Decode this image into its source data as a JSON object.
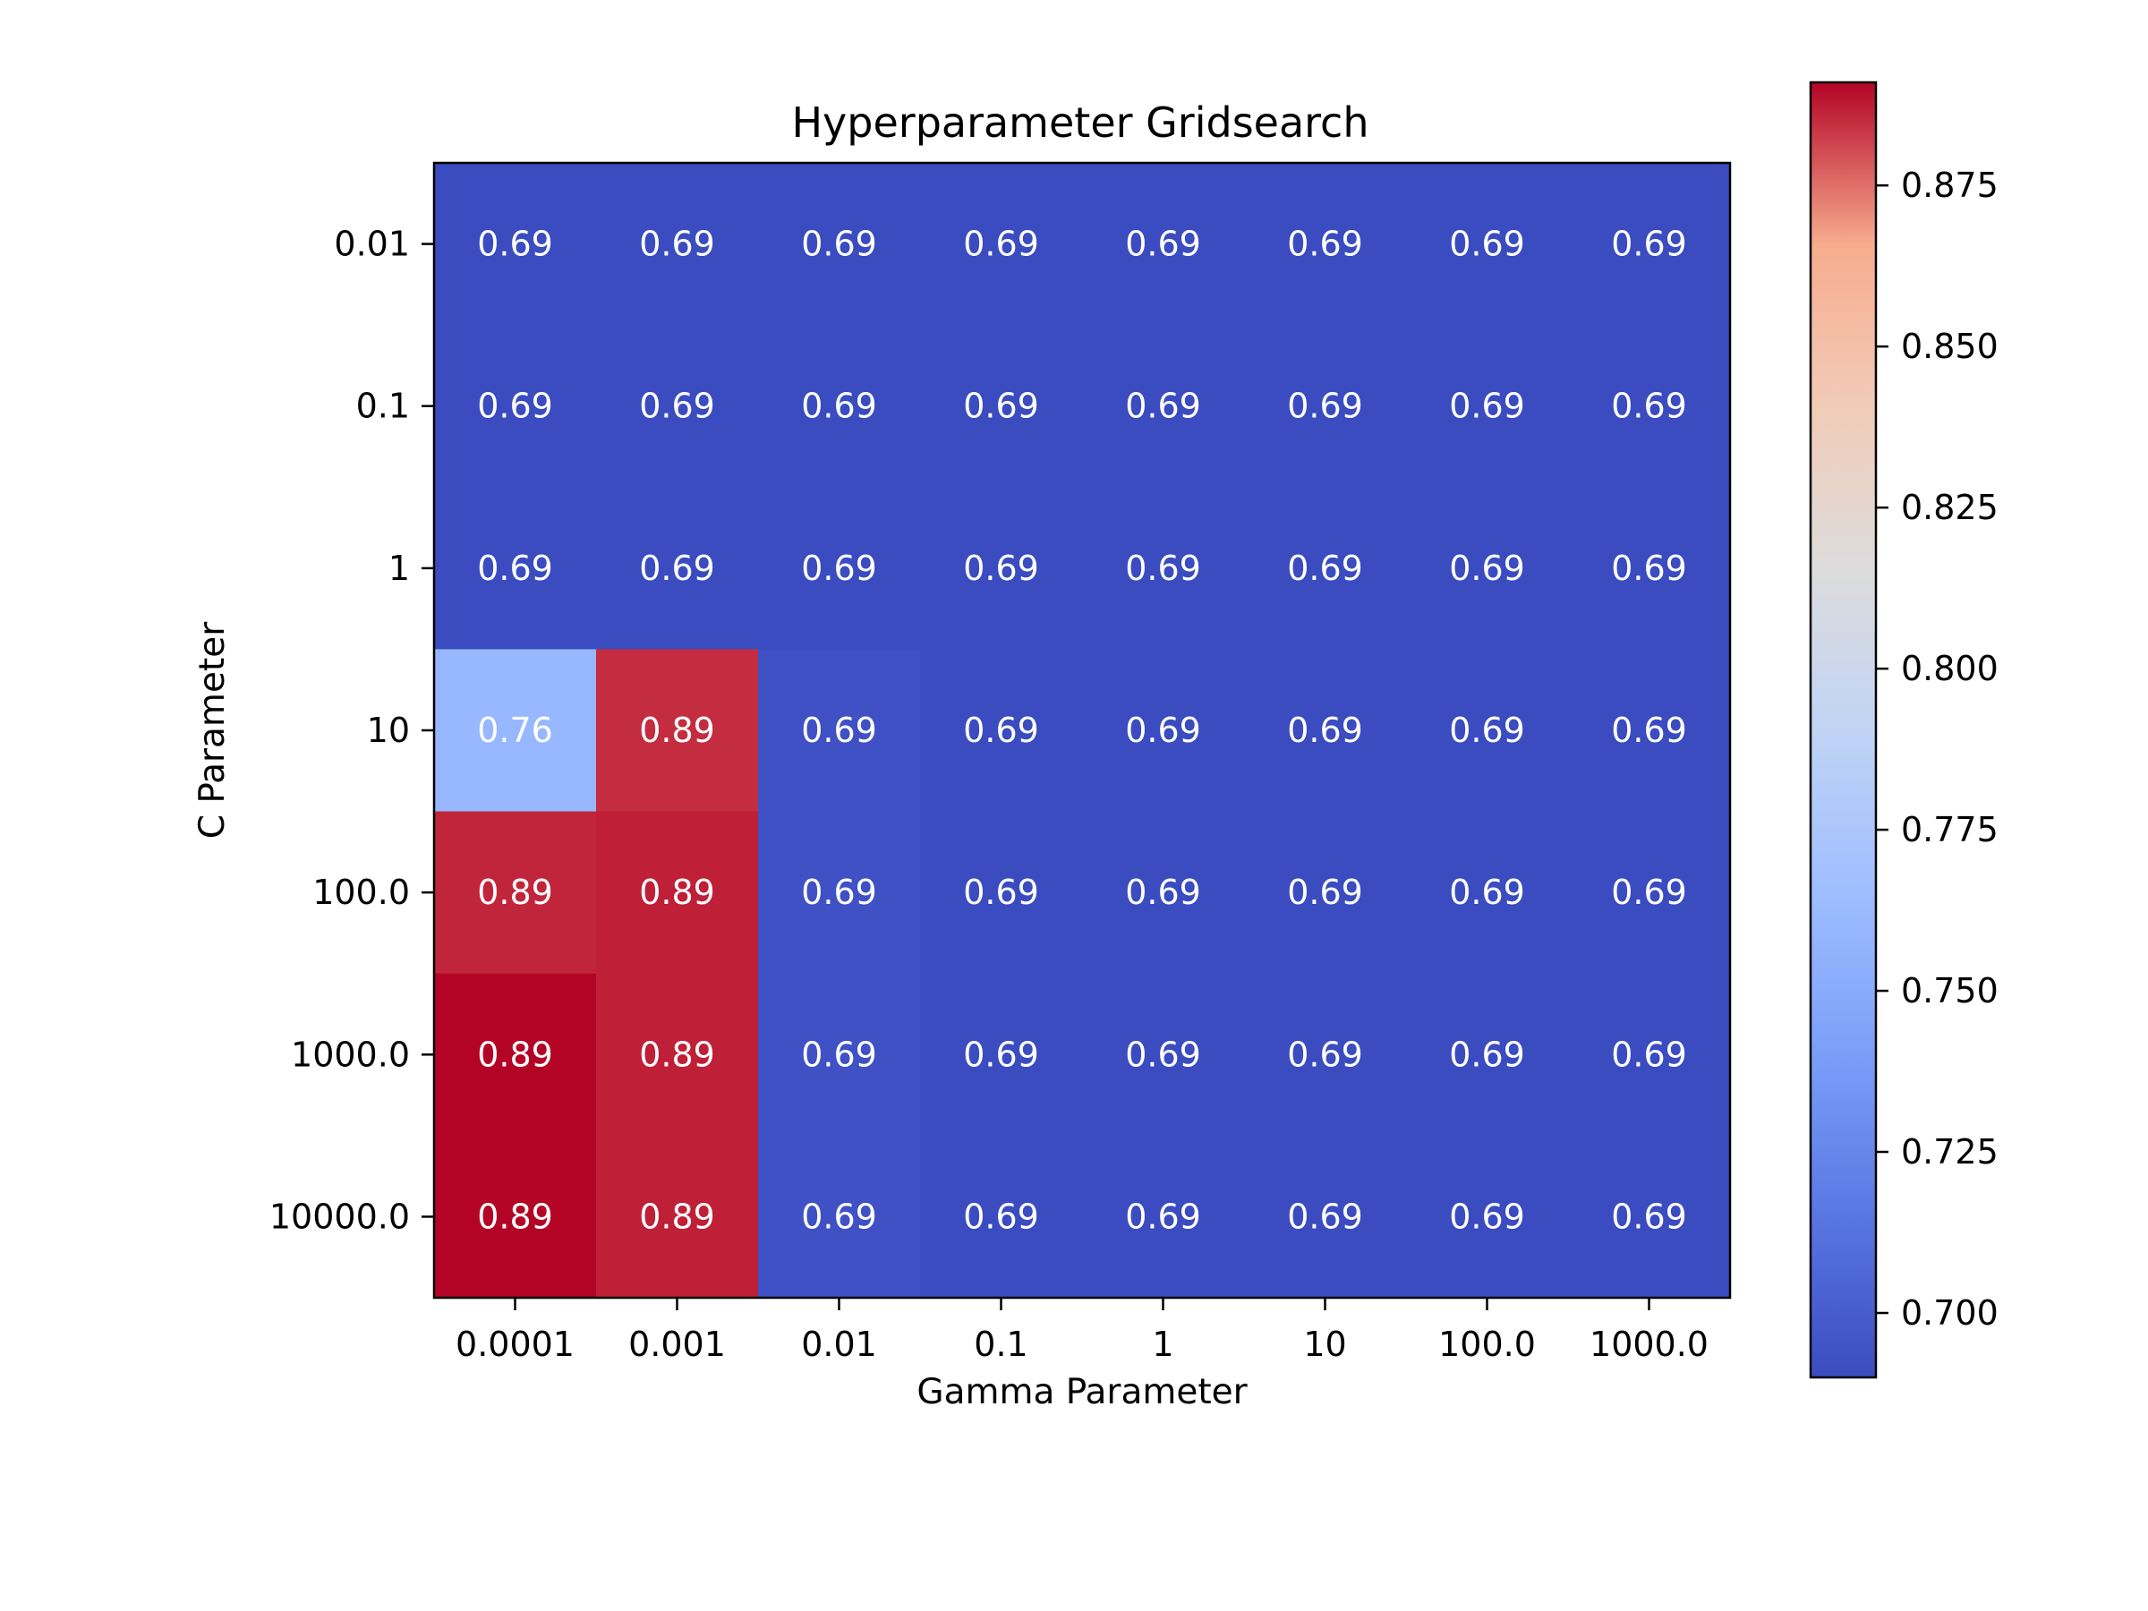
{
  "chart_data": {
    "type": "heatmap",
    "title": "Hyperparameter Gridsearch",
    "xlabel": "Gamma Parameter",
    "ylabel": "C Parameter",
    "x_categories": [
      "0.0001",
      "0.001",
      "0.01",
      "0.1",
      "1",
      "10",
      "100.0",
      "1000.0"
    ],
    "y_categories": [
      "0.01",
      "0.1",
      "1",
      "10",
      "100.0",
      "1000.0",
      "10000.0"
    ],
    "values": [
      [
        0.69,
        0.69,
        0.69,
        0.69,
        0.69,
        0.69,
        0.69,
        0.69
      ],
      [
        0.69,
        0.69,
        0.69,
        0.69,
        0.69,
        0.69,
        0.69,
        0.69
      ],
      [
        0.69,
        0.69,
        0.69,
        0.69,
        0.69,
        0.69,
        0.69,
        0.69
      ],
      [
        0.76,
        0.885,
        0.693,
        0.69,
        0.69,
        0.69,
        0.69,
        0.69
      ],
      [
        0.886,
        0.887,
        0.693,
        0.69,
        0.69,
        0.69,
        0.69,
        0.69
      ],
      [
        0.891,
        0.887,
        0.693,
        0.69,
        0.69,
        0.69,
        0.69,
        0.69
      ],
      [
        0.891,
        0.887,
        0.693,
        0.69,
        0.69,
        0.69,
        0.69,
        0.69
      ]
    ],
    "cell_labels": [
      [
        "0.69",
        "0.69",
        "0.69",
        "0.69",
        "0.69",
        "0.69",
        "0.69",
        "0.69"
      ],
      [
        "0.69",
        "0.69",
        "0.69",
        "0.69",
        "0.69",
        "0.69",
        "0.69",
        "0.69"
      ],
      [
        "0.69",
        "0.69",
        "0.69",
        "0.69",
        "0.69",
        "0.69",
        "0.69",
        "0.69"
      ],
      [
        "0.76",
        "0.89",
        "0.69",
        "0.69",
        "0.69",
        "0.69",
        "0.69",
        "0.69"
      ],
      [
        "0.89",
        "0.89",
        "0.69",
        "0.69",
        "0.69",
        "0.69",
        "0.69",
        "0.69"
      ],
      [
        "0.89",
        "0.89",
        "0.69",
        "0.69",
        "0.69",
        "0.69",
        "0.69",
        "0.69"
      ],
      [
        "0.89",
        "0.89",
        "0.69",
        "0.69",
        "0.69",
        "0.69",
        "0.69",
        "0.69"
      ]
    ],
    "colormap": "coolwarm",
    "colorbar": {
      "vmin": 0.69,
      "vmax": 0.891,
      "ticks": [
        0.7,
        0.725,
        0.75,
        0.775,
        0.8,
        0.825,
        0.85,
        0.875
      ],
      "tick_labels": [
        "0.700",
        "0.725",
        "0.750",
        "0.775",
        "0.800",
        "0.825",
        "0.850",
        "0.875"
      ],
      "placement": "right"
    },
    "grid": false
  }
}
